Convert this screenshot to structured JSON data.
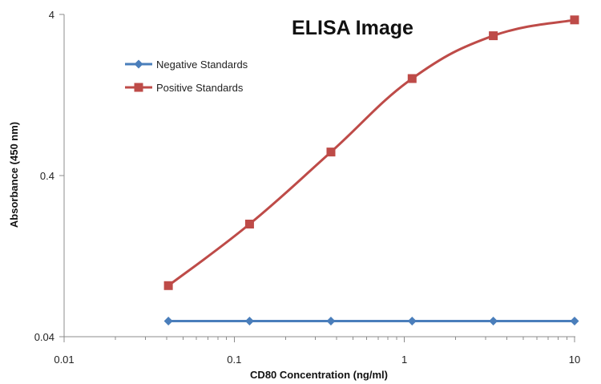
{
  "chart_data": {
    "type": "line",
    "title": "ELISA Image",
    "xlabel": "CD80 Concentration (ng/ml)",
    "ylabel": "Absorbance (450 nm)",
    "x_scale": "log",
    "y_scale": "log",
    "xlim": [
      0.01,
      10
    ],
    "ylim": [
      0.04,
      4
    ],
    "x_ticks": [
      {
        "value": 0.01,
        "label": "0.01"
      },
      {
        "value": 0.1,
        "label": "0.1"
      },
      {
        "value": 1,
        "label": "1"
      },
      {
        "value": 10,
        "label": "10"
      }
    ],
    "y_ticks": [
      {
        "value": 0.04,
        "label": "0.04"
      },
      {
        "value": 0.4,
        "label": "0.4"
      },
      {
        "value": 4,
        "label": "4"
      }
    ],
    "grid": false,
    "legend_position": "top-left",
    "x": [
      0.041,
      0.123,
      0.37,
      1.11,
      3.33,
      10
    ],
    "series": [
      {
        "name": "Negative Standards",
        "color": "#4a7ebb",
        "marker": "diamond",
        "line": "straight",
        "values": [
          0.05,
          0.05,
          0.05,
          0.05,
          0.05,
          0.05
        ]
      },
      {
        "name": "Positive Standards",
        "color": "#be4b48",
        "marker": "square",
        "line": "smooth",
        "values": [
          0.083,
          0.2,
          0.56,
          1.6,
          2.95,
          3.7
        ]
      }
    ]
  }
}
